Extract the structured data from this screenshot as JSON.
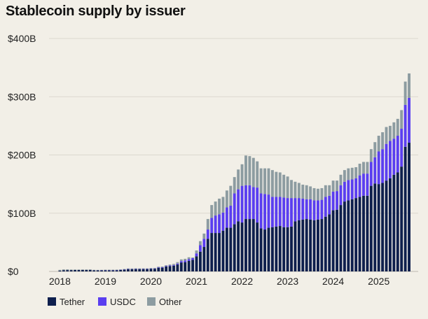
{
  "chart_data": {
    "type": "bar",
    "stacked": true,
    "title": "Stablecoin supply by issuer",
    "xlabel": "",
    "ylabel": "",
    "ylim": [
      0,
      400
    ],
    "y_ticks": [
      "$0",
      "$100B",
      "$200B",
      "$300B",
      "$400B"
    ],
    "y_tick_values": [
      0,
      100,
      200,
      300,
      400
    ],
    "x_ticks": [
      "2018",
      "2019",
      "2020",
      "2021",
      "2022",
      "2023",
      "2024",
      "2025"
    ],
    "x_tick_month_index": [
      0,
      12,
      24,
      36,
      48,
      60,
      72,
      84
    ],
    "x_start": "2018-01",
    "x_end": "2025-09",
    "frequency": "monthly",
    "grid": true,
    "legend_position": "bottom-left",
    "units": "USD billions",
    "series": [
      {
        "name": "Tether",
        "color": "#0e1f4d",
        "values": [
          1.4,
          2.2,
          2.3,
          2.3,
          2.5,
          2.6,
          2.7,
          2.7,
          2.8,
          2.0,
          1.9,
          1.9,
          2.0,
          2.0,
          2.0,
          2.1,
          2.6,
          3.1,
          4.0,
          4.0,
          4.1,
          4.1,
          4.1,
          4.1,
          4.6,
          4.6,
          6.4,
          6.4,
          8.4,
          9.2,
          9.9,
          11.9,
          15.4,
          16.0,
          18.1,
          20,
          26,
          34,
          42,
          56,
          66,
          66,
          66,
          70,
          75,
          75,
          81,
          86,
          84,
          90,
          90,
          90,
          84,
          74,
          72,
          75,
          76,
          77,
          78,
          76,
          76,
          77,
          86,
          88,
          89,
          90,
          89,
          88,
          89,
          90,
          94,
          98,
          105,
          106,
          114,
          120,
          122,
          124,
          126,
          128,
          130,
          130,
          147,
          151,
          150,
          152,
          156,
          160,
          166,
          170,
          180,
          214,
          221
        ]
      },
      {
        "name": "USDC",
        "color": "#5a3ef0",
        "values": [
          0,
          0,
          0,
          0,
          0,
          0,
          0,
          0,
          0,
          0.1,
          0.2,
          0.3,
          0.3,
          0.3,
          0.3,
          0.3,
          0.3,
          0.4,
          0.5,
          0.4,
          0.5,
          0.4,
          0.5,
          0.5,
          0.5,
          0.6,
          0.7,
          0.8,
          0.9,
          1.0,
          1.1,
          1.6,
          2.3,
          2.7,
          3.0,
          3,
          5,
          11,
          14,
          16,
          26,
          30,
          32,
          31,
          35,
          38,
          53,
          55,
          63,
          58,
          58,
          55,
          60,
          60,
          61,
          57,
          52,
          51,
          50,
          51,
          50,
          49,
          40,
          38,
          36,
          34,
          35,
          34,
          33,
          33,
          34,
          32,
          32,
          32,
          34,
          34,
          35,
          34,
          34,
          37,
          38,
          38,
          41,
          45,
          56,
          58,
          63,
          64,
          62,
          63,
          65,
          72,
          77
        ]
      },
      {
        "name": "Other",
        "color": "#8d9ca1",
        "values": [
          1.3,
          1.3,
          1.3,
          0.9,
          0.8,
          0.7,
          0.6,
          0.6,
          0.5,
          0.6,
          0.5,
          0.5,
          0.7,
          0.7,
          0.7,
          0.7,
          0.7,
          0.7,
          0.7,
          0.7,
          0.7,
          0.7,
          0.7,
          0.7,
          0.8,
          0.9,
          1.0,
          1.2,
          1.4,
          1.6,
          2.0,
          2.5,
          3.0,
          3.0,
          3.2,
          1,
          5,
          7,
          9,
          18,
          22,
          24,
          27,
          27,
          29,
          34,
          28,
          34,
          37,
          51,
          50,
          50,
          45,
          43,
          44,
          45,
          46,
          43,
          42,
          39,
          37,
          31,
          28,
          26,
          24,
          24,
          22,
          21,
          20,
          20,
          20,
          18,
          19,
          18,
          18,
          20,
          20,
          20,
          19,
          20,
          20,
          20,
          22,
          26,
          27,
          29,
          29,
          26,
          28,
          29,
          32,
          40,
          42
        ]
      }
    ]
  }
}
